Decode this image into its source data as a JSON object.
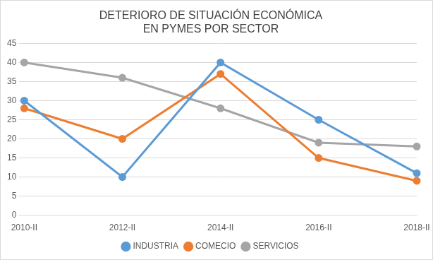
{
  "chart_data": {
    "type": "line",
    "title": "DETERIORO DE SITUACIÓN ECONÓMICA EN PYMES POR SECTOR",
    "categories": [
      "2010-II",
      "2012-II",
      "2014-II",
      "2016-II",
      "2018-II"
    ],
    "series": [
      {
        "name": "INDUSTRIA",
        "color": "#5b9bd5",
        "values": [
          30,
          10,
          40,
          25,
          11
        ]
      },
      {
        "name": "COMECIO",
        "color": "#ed7d31",
        "values": [
          28,
          20,
          37,
          15,
          9
        ]
      },
      {
        "name": "SERVICIOS",
        "color": "#a5a5a5",
        "values": [
          40,
          36,
          28,
          19,
          18
        ]
      }
    ],
    "ylim": [
      0,
      45
    ],
    "yticks": [
      0,
      5,
      10,
      15,
      20,
      25,
      30,
      35,
      40,
      45
    ],
    "grid": true,
    "legend": "bottom",
    "marker": "circle",
    "line_style": "solid"
  }
}
